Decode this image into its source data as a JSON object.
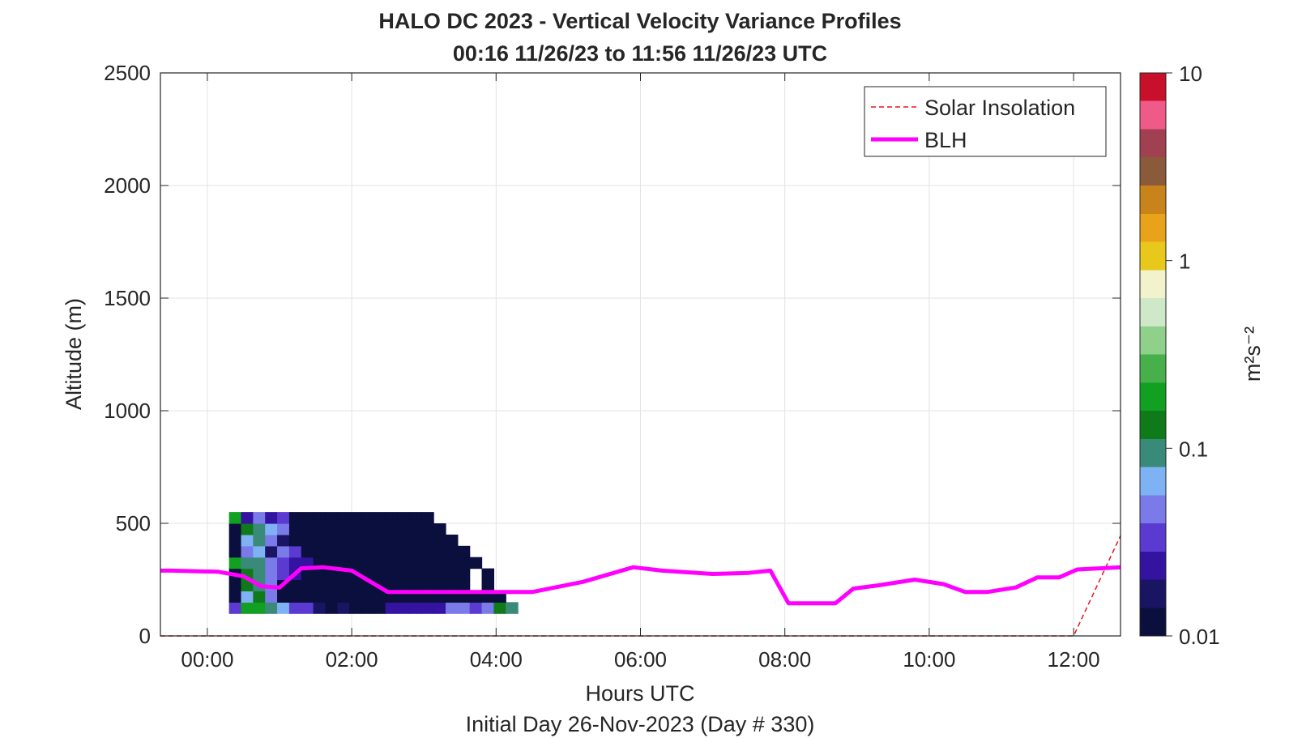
{
  "chart_data": {
    "type": "heatmap",
    "title": "HALO DC 2023 - Vertical Velocity Variance Profiles",
    "subtitle": "00:16 11/26/23 to 11:56 11/26/23  UTC",
    "xlabel": "Hours UTC",
    "xlabel_sub": "Initial Day 26-Nov-2023 (Day # 330)",
    "ylabel": "Altitude (m)",
    "xlim_hours": [
      -0.65,
      12.65
    ],
    "ylim": [
      0,
      2500
    ],
    "x_ticks": [
      {
        "hour": 0,
        "label": "00:00"
      },
      {
        "hour": 2,
        "label": "02:00"
      },
      {
        "hour": 4,
        "label": "04:00"
      },
      {
        "hour": 6,
        "label": "06:00"
      },
      {
        "hour": 8,
        "label": "08:00"
      },
      {
        "hour": 10,
        "label": "10:00"
      },
      {
        "hour": 12,
        "label": "12:00"
      }
    ],
    "y_ticks": [
      {
        "value": 0,
        "label": "0"
      },
      {
        "value": 500,
        "label": "500"
      },
      {
        "value": 1000,
        "label": "1000"
      },
      {
        "value": 1500,
        "label": "1500"
      },
      {
        "value": 2000,
        "label": "2000"
      },
      {
        "value": 2500,
        "label": "2500"
      }
    ],
    "grid": true,
    "legend": {
      "location": "top-right",
      "entries": [
        {
          "name": "Solar Insolation",
          "style": "dashed",
          "color": "#e8141b"
        },
        {
          "name": "BLH",
          "style": "solid",
          "color": "#ff00ff"
        }
      ]
    },
    "colorbar": {
      "label": "m²s⁻²",
      "scale": "log",
      "range": [
        0.01,
        10
      ],
      "ticks": [
        {
          "value": 0.01,
          "label": "0.01"
        },
        {
          "value": 0.1,
          "label": "0.1"
        },
        {
          "value": 1,
          "label": "1"
        },
        {
          "value": 10,
          "label": "10"
        }
      ]
    },
    "colormap": [
      "#0b0f3d",
      "#1a1562",
      "#3413a0",
      "#5a3ad0",
      "#7a7be8",
      "#7fb2f5",
      "#3a8a7a",
      "#0f7a1a",
      "#12a022",
      "#48b04a",
      "#8fd08a",
      "#cfe8c8",
      "#f2f2cc",
      "#e8c81a",
      "#e8a31a",
      "#c8841a",
      "#8a5a3a",
      "#a04050",
      "#f05a88",
      "#c8102a"
    ],
    "heatmap": {
      "time_start_hour": 0.3,
      "time_step_hour": 0.1667,
      "altitude_start": 100,
      "altitude_step": 50,
      "value_units": "log10 variance",
      "profiles": [
        [
          -1.53,
          -0.69,
          -0.79,
          -1.08,
          -1.18,
          -1.52,
          -1.46,
          -1.71,
          -1.98,
          -1.74,
          -1.98,
          -1.94,
          -1.85,
          -1.7,
          -1.66,
          -1.63,
          -1.62,
          -1.57,
          -1.36,
          -1.28,
          -1.51,
          -1.28,
          -0.95,
          -1.09
        ],
        [
          -1.98,
          -1.18,
          -0.93,
          -1.28,
          -1.96,
          -1.98,
          -1.98,
          -1.98,
          -1.98,
          -1.98,
          -1.98,
          -1.98,
          -1.98,
          -1.98,
          -1.98,
          -1.98,
          -1.98,
          -1.98,
          -1.98,
          -1.98,
          -1.98,
          -1.98,
          -1.98
        ],
        [
          -1.98,
          -0.93,
          -0.98,
          -1.36,
          -1.96,
          -1.98,
          -1.98,
          -1.98,
          -1.98,
          -1.98,
          -1.98,
          -1.98,
          -1.98,
          -1.98,
          -1.98,
          -1.98,
          -1.98,
          -1.98,
          -1.98,
          -1.98,
          null,
          -1.98
        ],
        [
          -1.98,
          -0.81,
          -1.08,
          -1.34,
          -1.46,
          -1.62,
          -1.98,
          -1.98,
          -1.98,
          -1.98,
          -1.98,
          -1.98,
          -1.98,
          -1.98,
          -1.98,
          -1.98,
          -1.98,
          -1.98,
          -1.98,
          -1.98,
          null,
          -1.98
        ],
        [
          -0.69,
          -0.98,
          -1.06,
          -1.26,
          -1.48,
          -1.64,
          -1.62,
          -1.98,
          -1.98,
          -1.98,
          -1.98,
          -1.98,
          -1.98,
          -1.98,
          -1.98,
          -1.98,
          -1.98,
          -1.98,
          -1.98,
          -1.98,
          -1.98
        ],
        [
          -1.98,
          -1.28,
          -1.21,
          -1.72,
          -1.36,
          -1.46,
          -1.98,
          -1.98,
          -1.98,
          -1.98,
          -1.98,
          -1.98,
          -1.98,
          -1.98,
          -1.98,
          -1.98,
          -1.98,
          -1.98,
          -1.98,
          -1.98
        ],
        [
          -1.98,
          -1.21,
          -1.08,
          -1.26,
          -1.83,
          -1.94,
          -1.98,
          -1.98,
          -1.98,
          -1.98,
          -1.98,
          -1.98,
          -1.98,
          -1.98,
          -1.98,
          -1.98,
          -1.98,
          -1.98,
          -1.98
        ],
        [
          -1.98,
          -0.91,
          -1.06,
          -1.18,
          -1.36,
          -1.98,
          -1.98,
          -1.98,
          -1.98,
          -1.98,
          -1.98,
          -1.98,
          -1.98,
          -1.98,
          -1.98,
          -1.98,
          -1.98,
          -1.98
        ],
        [
          -0.69,
          -1.56,
          -1.28,
          -1.56,
          -1.48,
          -1.96,
          -1.98,
          -1.98,
          -1.98,
          -1.98,
          -1.98,
          -1.98,
          -1.98,
          -1.98,
          -1.98,
          -1.98,
          -1.98
        ]
      ]
    },
    "blh": {
      "hours": [
        -0.65,
        -0.5,
        0.15,
        0.5,
        0.75,
        1.0,
        1.3,
        1.6,
        2.0,
        2.5,
        3.5,
        4.5,
        5.2,
        5.9,
        6.3,
        7.0,
        7.5,
        7.8,
        8.05,
        8.7,
        8.95,
        9.3,
        9.8,
        10.2,
        10.5,
        10.8,
        11.2,
        11.5,
        11.8,
        12.05,
        12.65
      ],
      "altitude": [
        290,
        290,
        285,
        265,
        220,
        215,
        300,
        305,
        290,
        195,
        195,
        195,
        240,
        305,
        290,
        275,
        280,
        290,
        145,
        145,
        210,
        225,
        250,
        230,
        195,
        195,
        215,
        260,
        260,
        295,
        305
      ]
    },
    "solar_insolation": {
      "hours": [
        -0.65,
        12.0,
        12.65
      ],
      "altitude": [
        0,
        0,
        445
      ]
    }
  }
}
